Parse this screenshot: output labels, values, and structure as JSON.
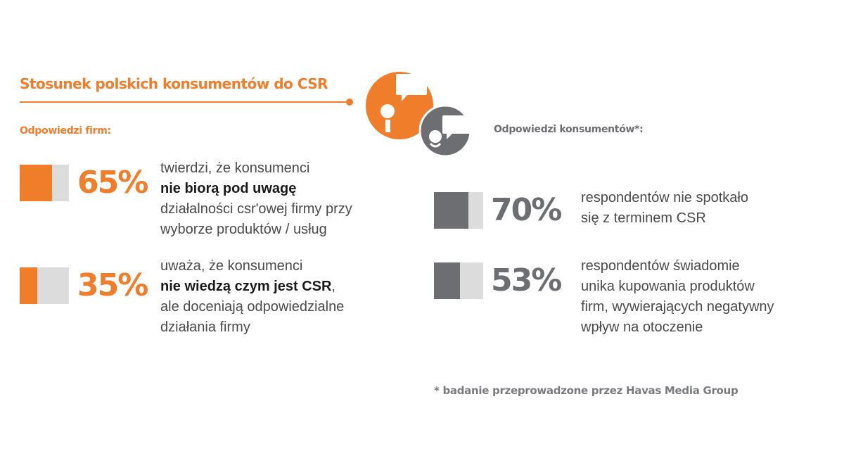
{
  "title": "Stosunek polskich konsumentów do CSR",
  "labels": {
    "firms": "Odpowiedzi firm:",
    "consumers": "Odpowiedzi konsumentów*:"
  },
  "colors": {
    "orange": "#ef7d2a",
    "gray": "#6d6e71",
    "light_gray": "#dcdcdd"
  },
  "icons": [
    "person-speech-bubble-icon",
    "person-speech-bubble-icon"
  ],
  "chart_data": [
    {
      "type": "bar",
      "group": "Odpowiedzi firm:",
      "items": [
        {
          "value": 65,
          "label": "65%",
          "lines": [
            {
              "text": "twierdzi, że konsumenci",
              "bold": false
            },
            {
              "text": "nie biorą pod uwagę",
              "bold": true
            },
            {
              "text": "działalności csr'owej firmy przy",
              "bold": false
            },
            {
              "text": "wyborze produktów / usług",
              "bold": false
            }
          ]
        },
        {
          "value": 35,
          "label": "35%",
          "lines": [
            {
              "text": "uważa, że konsumenci",
              "bold": false
            },
            {
              "text": "nie wiedzą czym jest CSR",
              "bold": true,
              "suffix": ","
            },
            {
              "text": "ale doceniają odpowiedzialne",
              "bold": false
            },
            {
              "text": "działania firmy",
              "bold": false
            }
          ]
        }
      ]
    },
    {
      "type": "bar",
      "group": "Odpowiedzi konsumentów*:",
      "items": [
        {
          "value": 70,
          "label": "70%",
          "lines": [
            {
              "text": "respondentów nie spotkało",
              "bold": false
            },
            {
              "text": "się z terminem CSR",
              "bold": false
            }
          ]
        },
        {
          "value": 53,
          "label": "53%",
          "lines": [
            {
              "text": "respondentów świadomie",
              "bold": false
            },
            {
              "text": "unika kupowania produktów",
              "bold": false
            },
            {
              "text": "firm, wywierających negatywny",
              "bold": false
            },
            {
              "text": "wpływ na otoczenie",
              "bold": false
            }
          ]
        }
      ]
    }
  ],
  "footnote": "* badanie przeprowadzone przez Havas Media Group"
}
